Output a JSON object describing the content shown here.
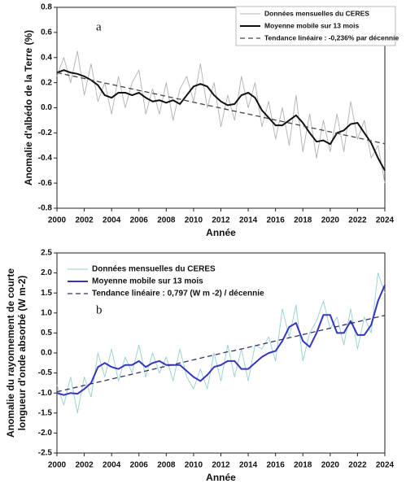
{
  "chart_data": [
    {
      "type": "line",
      "annotation": "a",
      "ylabel": "Anomalie d'albédo de la Terre (%)",
      "xlabel": "Année",
      "x": [
        2000,
        2000.5,
        2001,
        2001.5,
        2002,
        2002.5,
        2003,
        2003.5,
        2004,
        2004.5,
        2005,
        2005.5,
        2006,
        2006.5,
        2007,
        2007.5,
        2008,
        2008.5,
        2009,
        2009.5,
        2010,
        2010.5,
        2011,
        2011.5,
        2012,
        2012.5,
        2013,
        2013.5,
        2014,
        2014.5,
        2015,
        2015.5,
        2016,
        2016.5,
        2017,
        2017.5,
        2018,
        2018.5,
        2019,
        2019.5,
        2020,
        2020.5,
        2021,
        2021.5,
        2022,
        2022.5,
        2023,
        2023.5,
        2024
      ],
      "xlim": [
        2000,
        2024
      ],
      "xticks": [
        2000,
        2002,
        2004,
        2006,
        2008,
        2010,
        2012,
        2014,
        2016,
        2018,
        2020,
        2022,
        2024
      ],
      "ylim": [
        -0.8,
        0.8
      ],
      "yticks": [
        {
          "value": -0.8,
          "label": "-0.8"
        },
        -0.6,
        -0.4,
        -0.2,
        {
          "value": 0,
          "label": "0.0"
        },
        0.2,
        0.4,
        0.6,
        0.8
      ],
      "legend": "upper right",
      "series": [
        {
          "name": "Données mensuelles du CERES",
          "color": "#b0b0b0",
          "style": "solid",
          "values": [
            0.25,
            0.4,
            0.2,
            0.45,
            0.1,
            0.35,
            0.05,
            0.2,
            -0.05,
            0.25,
            0.0,
            0.2,
            0.3,
            -0.05,
            0.15,
            -0.05,
            0.2,
            -0.1,
            0.15,
            0.25,
            0.05,
            0.35,
            0.0,
            0.2,
            -0.15,
            0.1,
            -0.1,
            0.25,
            0.0,
            0.2,
            -0.15,
            0.05,
            -0.25,
            0.0,
            -0.3,
            0.1,
            -0.35,
            -0.05,
            -0.4,
            -0.1,
            -0.35,
            -0.05,
            -0.35,
            0.05,
            -0.25,
            -0.1,
            -0.4,
            -0.3,
            -0.6
          ]
        },
        {
          "name": "Moyenne mobile sur 13 mois",
          "color": "#111111",
          "style": "thick",
          "values": [
            0.28,
            0.3,
            0.28,
            0.27,
            0.25,
            0.22,
            0.18,
            0.1,
            0.08,
            0.12,
            0.12,
            0.1,
            0.12,
            0.08,
            0.05,
            0.06,
            0.04,
            0.06,
            0.03,
            0.1,
            0.17,
            0.19,
            0.17,
            0.1,
            0.05,
            0.02,
            0.03,
            0.1,
            0.12,
            0.08,
            -0.02,
            -0.08,
            -0.14,
            -0.14,
            -0.1,
            -0.06,
            -0.12,
            -0.2,
            -0.27,
            -0.26,
            -0.29,
            -0.2,
            -0.18,
            -0.13,
            -0.12,
            -0.2,
            -0.28,
            -0.4,
            -0.5
          ]
        },
        {
          "name": "Tendance linéaire : -0,236% par décennie",
          "color": "#444444",
          "style": "dashed",
          "values": [
            0.28,
            0.268,
            0.256,
            0.245,
            0.233,
            0.221,
            0.209,
            0.197,
            0.186,
            0.174,
            0.162,
            0.15,
            0.138,
            0.127,
            0.115,
            0.103,
            0.091,
            0.079,
            0.068,
            0.056,
            0.044,
            0.032,
            0.02,
            0.009,
            -0.003,
            -0.015,
            -0.027,
            -0.039,
            -0.05,
            -0.062,
            -0.074,
            -0.086,
            -0.098,
            -0.109,
            -0.121,
            -0.133,
            -0.145,
            -0.157,
            -0.168,
            -0.18,
            -0.192,
            -0.204,
            -0.216,
            -0.227,
            -0.239,
            -0.251,
            -0.263,
            -0.275,
            -0.286
          ]
        }
      ]
    },
    {
      "type": "line",
      "annotation": "b",
      "ylabel": [
        "Anomalie du rayonnement de courte",
        "longueur d'onde absorbé (W m-2)"
      ],
      "xlabel": "Année",
      "x": [
        2000,
        2000.5,
        2001,
        2001.5,
        2002,
        2002.5,
        2003,
        2003.5,
        2004,
        2004.5,
        2005,
        2005.5,
        2006,
        2006.5,
        2007,
        2007.5,
        2008,
        2008.5,
        2009,
        2009.5,
        2010,
        2010.5,
        2011,
        2011.5,
        2012,
        2012.5,
        2013,
        2013.5,
        2014,
        2014.5,
        2015,
        2015.5,
        2016,
        2016.5,
        2017,
        2017.5,
        2018,
        2018.5,
        2019,
        2019.5,
        2020,
        2020.5,
        2021,
        2021.5,
        2022,
        2022.5,
        2023,
        2023.5,
        2024
      ],
      "xlim": [
        2000,
        2024
      ],
      "xticks": [
        2000,
        2002,
        2004,
        2006,
        2008,
        2010,
        2012,
        2014,
        2016,
        2018,
        2020,
        2022,
        2024
      ],
      "ylim": [
        -2.5,
        2.5
      ],
      "yticks": [
        -2.5,
        {
          "value": -2,
          "label": "-2.0"
        },
        -1.5,
        {
          "value": -1,
          "label": "-1.0"
        },
        -0.5,
        {
          "value": 0,
          "label": "0.0"
        },
        0.5,
        {
          "value": 1,
          "label": "1.0"
        },
        1.5,
        {
          "value": 2,
          "label": "2.0"
        },
        2.5
      ],
      "legend": "upper left",
      "series": [
        {
          "name": "Données mensuelles du CERES",
          "color": "#93cfd0",
          "style": "solid",
          "values": [
            -0.8,
            -1.3,
            -0.6,
            -1.5,
            -0.6,
            -1.1,
            0.0,
            -0.6,
            0.1,
            -0.7,
            -0.1,
            -0.5,
            0.2,
            -0.6,
            0.0,
            -0.5,
            -0.1,
            -0.7,
            0.1,
            -0.6,
            -0.9,
            -0.4,
            -0.9,
            0.0,
            -0.7,
            0.2,
            -0.6,
            0.1,
            -0.7,
            0.2,
            0.1,
            0.4,
            -0.2,
            1.1,
            0.4,
            1.2,
            -0.2,
            0.5,
            0.8,
            1.3,
            0.6,
            0.9,
            0.2,
            1.1,
            0.1,
            0.9,
            0.5,
            2.0,
            1.5
          ]
        },
        {
          "name": "Moyenne mobile sur 13 mois",
          "color": "#3535c0",
          "style": "thick",
          "values": [
            -1.0,
            -1.05,
            -1.0,
            -1.02,
            -0.9,
            -0.75,
            -0.35,
            -0.25,
            -0.35,
            -0.4,
            -0.3,
            -0.3,
            -0.2,
            -0.35,
            -0.25,
            -0.2,
            -0.3,
            -0.3,
            -0.3,
            -0.45,
            -0.6,
            -0.7,
            -0.55,
            -0.35,
            -0.3,
            -0.2,
            -0.2,
            -0.4,
            -0.4,
            -0.25,
            -0.1,
            0.0,
            0.05,
            0.3,
            0.65,
            0.75,
            0.3,
            0.15,
            0.5,
            0.95,
            0.95,
            0.5,
            0.5,
            0.8,
            0.45,
            0.45,
            0.7,
            1.3,
            1.7
          ]
        },
        {
          "name": "Tendance linéaire : 0,797 (W m -2) / décennie",
          "color": "#333366",
          "style": "dashed",
          "values": [
            -0.97,
            -0.93,
            -0.89,
            -0.85,
            -0.81,
            -0.77,
            -0.73,
            -0.69,
            -0.65,
            -0.61,
            -0.57,
            -0.53,
            -0.49,
            -0.45,
            -0.41,
            -0.37,
            -0.33,
            -0.29,
            -0.25,
            -0.21,
            -0.17,
            -0.13,
            -0.09,
            -0.05,
            -0.01,
            0.03,
            0.06,
            0.1,
            0.14,
            0.18,
            0.22,
            0.26,
            0.3,
            0.34,
            0.38,
            0.42,
            0.46,
            0.5,
            0.54,
            0.58,
            0.62,
            0.66,
            0.7,
            0.74,
            0.78,
            0.82,
            0.86,
            0.9,
            0.94
          ]
        }
      ]
    }
  ]
}
